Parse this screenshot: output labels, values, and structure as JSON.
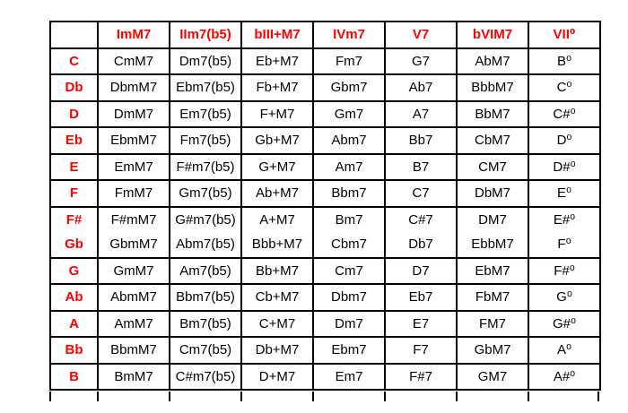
{
  "table": {
    "headers": [
      "",
      "ImM7",
      "IIm7(b5)",
      "bIII+M7",
      "IVm7",
      "V7",
      "bVIM7",
      "VII⁰"
    ],
    "rows": [
      {
        "key": "C",
        "cells": [
          "CmM7",
          "Dm7(b5)",
          "Eb+M7",
          "Fm7",
          "G7",
          "AbM7",
          "B⁰"
        ]
      },
      {
        "key": "Db",
        "cells": [
          "DbmM7",
          "Ebm7(b5)",
          "Fb+M7",
          "Gbm7",
          "Ab7",
          "BbbM7",
          "C⁰"
        ]
      },
      {
        "key": "D",
        "cells": [
          "DmM7",
          "Em7(b5)",
          "F+M7",
          "Gm7",
          "A7",
          "BbM7",
          "C#⁰"
        ]
      },
      {
        "key": "Eb",
        "cells": [
          "EbmM7",
          "Fm7(b5)",
          "Gb+M7",
          "Abm7",
          "Bb7",
          "CbM7",
          "D⁰"
        ]
      },
      {
        "key": "E",
        "cells": [
          "EmM7",
          "F#m7(b5)",
          "G+M7",
          "Am7",
          "B7",
          "CM7",
          "D#⁰"
        ]
      },
      {
        "key": "F",
        "cells": [
          "FmM7",
          "Gm7(b5)",
          "Ab+M7",
          "Bbm7",
          "C7",
          "DbM7",
          "E⁰"
        ]
      },
      {
        "key": "F#",
        "cells": [
          "F#mM7",
          "G#m7(b5)",
          "A+M7",
          "Bm7",
          "C#7",
          "DM7",
          "E#⁰"
        ],
        "no_divider_below": true
      },
      {
        "key": "Gb",
        "cells": [
          "GbmM7",
          "Abm7(b5)",
          "Bbb+M7",
          "Cbm7",
          "Db7",
          "EbbM7",
          "F⁰"
        ]
      },
      {
        "key": "G",
        "cells": [
          "GmM7",
          "Am7(b5)",
          "Bb+M7",
          "Cm7",
          "D7",
          "EbM7",
          "F#⁰"
        ]
      },
      {
        "key": "Ab",
        "cells": [
          "AbmM7",
          "Bbm7(b5)",
          "Cb+M7",
          "Dbm7",
          "Eb7",
          "FbM7",
          "G⁰"
        ]
      },
      {
        "key": "A",
        "cells": [
          "AmM7",
          "Bm7(b5)",
          "C+M7",
          "Dm7",
          "E7",
          "FM7",
          "G#⁰"
        ]
      },
      {
        "key": "Bb",
        "cells": [
          "BbmM7",
          "Cm7(b5)",
          "Db+M7",
          "Ebm7",
          "F7",
          "GbM7",
          "A⁰"
        ]
      },
      {
        "key": "B",
        "cells": [
          "BmM7",
          "C#m7(b5)",
          "D+M7",
          "Em7",
          "F#7",
          "GM7",
          "A#⁰"
        ]
      }
    ]
  },
  "colors": {
    "header_text": "#ff0000",
    "key_text": "#ff0000",
    "body_text": "#000000",
    "border": "#000000",
    "background": "#ffffff"
  }
}
